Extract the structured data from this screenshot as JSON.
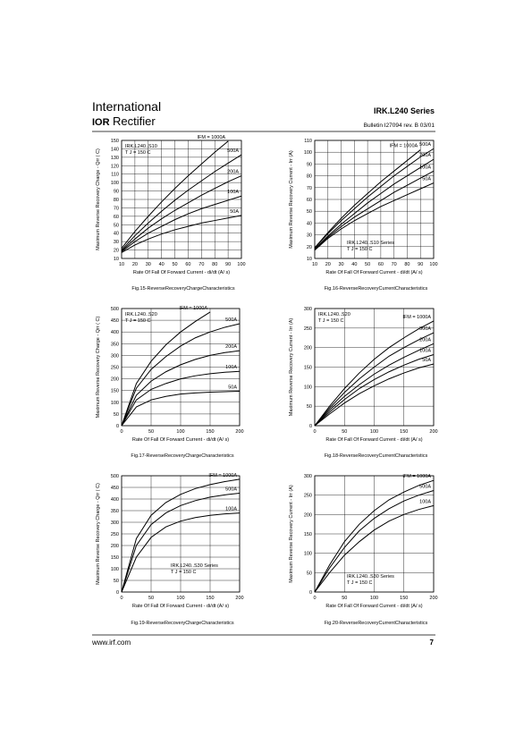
{
  "header": {
    "company_line1": "International",
    "logo": "IOR",
    "company_line2": "Rectifier",
    "series": "IRK.L240  Series",
    "bulletin": "Bulletin  I27094  rev. B  03/01"
  },
  "chart_data": [
    {
      "type": "line",
      "title": "Fig.15-ReverseRecoveryChargeCharacteristics",
      "x_label": "Rate Of Fall Of Forward Current - di/dt (A/  s)",
      "y_label": "Maximum Reverse Recovery Charge - Qrr ( C)",
      "annotations": [
        "IRK.L240..S10",
        "T J = 150  C"
      ],
      "x": [
        10,
        20,
        30,
        40,
        50,
        60,
        70,
        80,
        90,
        100
      ],
      "xlim": [
        10,
        100
      ],
      "xticks": [
        10,
        20,
        30,
        40,
        50,
        60,
        70,
        80,
        90,
        100
      ],
      "ylim": [
        10,
        150
      ],
      "yticks": [
        10,
        20,
        30,
        40,
        50,
        60,
        70,
        80,
        90,
        100,
        110,
        120,
        130,
        140,
        150
      ],
      "grid": true,
      "series": [
        {
          "name": "IFM = 1000A",
          "color": "#000000",
          "values": [
            22,
            42,
            60,
            77,
            93,
            108,
            122,
            136,
            149,
            null
          ]
        },
        {
          "name": "500A",
          "color": "#000000",
          "values": [
            20,
            37,
            52,
            66,
            79,
            91,
            102,
            113,
            123,
            133
          ]
        },
        {
          "name": "200A",
          "color": "#000000",
          "values": [
            19,
            33,
            46,
            57,
            67,
            76,
            85,
            93,
            101,
            108
          ]
        },
        {
          "name": "100A",
          "color": "#000000",
          "values": [
            18,
            30,
            40,
            48,
            56,
            63,
            69,
            74,
            79,
            84
          ]
        },
        {
          "name": "50A",
          "color": "#000000",
          "values": [
            17,
            26,
            33,
            39,
            44,
            48,
            52,
            55,
            58,
            61
          ]
        }
      ]
    },
    {
      "type": "line",
      "title": "Fig.16-ReverseRecoveryCurrentCharacteristics",
      "x_label": "Rate Of Fall Of Forward Current - di/dt (A/  s)",
      "y_label": "Maximum Reverse Recovery Current - Irr (A)",
      "annotations": [
        "IRK.L240..S10 Series",
        "T J = 150  C"
      ],
      "x": [
        10,
        20,
        30,
        40,
        50,
        60,
        70,
        80,
        90,
        100
      ],
      "xlim": [
        10,
        100
      ],
      "xticks": [
        10,
        20,
        30,
        40,
        50,
        60,
        70,
        80,
        90,
        100
      ],
      "ylim": [
        10,
        110
      ],
      "yticks": [
        10,
        20,
        30,
        40,
        50,
        60,
        70,
        80,
        90,
        100,
        110
      ],
      "grid": true,
      "series": [
        {
          "name": "IFM = 1000A",
          "color": "#000000",
          "values": [
            19,
            32,
            44,
            55,
            65,
            75,
            84,
            93,
            102,
            null
          ]
        },
        {
          "name": "500A",
          "color": "#000000",
          "values": [
            19,
            31,
            42,
            52,
            62,
            71,
            80,
            88,
            96,
            103
          ]
        },
        {
          "name": "200A",
          "color": "#000000",
          "values": [
            18,
            29,
            39,
            48,
            57,
            65,
            73,
            80,
            87,
            94
          ]
        },
        {
          "name": "100A",
          "color": "#000000",
          "values": [
            18,
            28,
            37,
            45,
            52,
            59,
            66,
            72,
            78,
            84
          ]
        },
        {
          "name": "50A",
          "color": "#000000",
          "values": [
            17,
            27,
            35,
            42,
            48,
            54,
            59,
            64,
            69,
            74
          ]
        }
      ]
    },
    {
      "type": "line",
      "title": "Fig.17-ReverseRecoveryChargeCharacteristics",
      "x_label": "Rate Of Fall Of Forward Current - di/dt (A/  s)",
      "y_label": "Maximum Reverse Recovery Charge - Qrr ( C)",
      "annotations": [
        "IRK.L240..S20",
        "T J = 150  C"
      ],
      "x": [
        0,
        25,
        50,
        75,
        100,
        125,
        150,
        175,
        200
      ],
      "xlim": [
        0,
        200
      ],
      "xticks": [
        0,
        50,
        100,
        150,
        200
      ],
      "ylim": [
        0,
        500
      ],
      "yticks": [
        0,
        50,
        100,
        150,
        200,
        250,
        300,
        350,
        400,
        450,
        500
      ],
      "grid": true,
      "series": [
        {
          "name": "IFM = 1000A",
          "color": "#000000",
          "values": [
            0,
            180,
            275,
            345,
            400,
            445,
            485,
            null,
            null
          ]
        },
        {
          "name": "500A",
          "color": "#000000",
          "values": [
            0,
            160,
            240,
            295,
            340,
            375,
            400,
            420,
            435
          ]
        },
        {
          "name": "200A",
          "color": "#000000",
          "values": [
            0,
            130,
            190,
            230,
            260,
            283,
            300,
            312,
            320
          ]
        },
        {
          "name": "100A",
          "color": "#000000",
          "values": [
            0,
            110,
            155,
            180,
            200,
            213,
            222,
            228,
            232
          ]
        },
        {
          "name": "50A",
          "color": "#000000",
          "values": [
            0,
            80,
            110,
            125,
            135,
            140,
            143,
            145,
            147
          ]
        }
      ]
    },
    {
      "type": "line",
      "title": "Fig.18-ReverseRecoveryCurrentCharacteristics",
      "x_label": "Rate Of Fall Of Forward Current - di/dt (A/  s)",
      "y_label": "Maximum Reverse Recovery Current - Irr (A)",
      "annotations": [
        "IRK.L240..S20",
        "T J = 150  C"
      ],
      "x": [
        0,
        25,
        50,
        75,
        100,
        125,
        150,
        175,
        200
      ],
      "xlim": [
        0,
        200
      ],
      "xticks": [
        0,
        50,
        100,
        150,
        200
      ],
      "ylim": [
        0,
        300
      ],
      "yticks": [
        0,
        50,
        100,
        150,
        200,
        250,
        300
      ],
      "grid": true,
      "series": [
        {
          "name": "IFM = 1000A",
          "color": "#000000",
          "values": [
            0,
            50,
            95,
            135,
            170,
            200,
            225,
            248,
            268
          ]
        },
        {
          "name": "500A",
          "color": "#000000",
          "values": [
            0,
            45,
            85,
            120,
            150,
            178,
            200,
            220,
            238
          ]
        },
        {
          "name": "200A",
          "color": "#000000",
          "values": [
            0,
            40,
            75,
            105,
            132,
            155,
            175,
            193,
            210
          ]
        },
        {
          "name": "100A",
          "color": "#000000",
          "values": [
            0,
            35,
            67,
            95,
            118,
            138,
            155,
            170,
            182
          ]
        },
        {
          "name": "50A",
          "color": "#000000",
          "values": [
            0,
            30,
            58,
            82,
            102,
            120,
            135,
            148,
            158
          ]
        }
      ]
    },
    {
      "type": "line",
      "title": "Fig.19-ReverseRecoveryChargeCharacteristics",
      "x_label": "Rate Of Fall Of Forward Current - di/dt (A/  s)",
      "y_label": "Maximum Reverse Recovery Charge - Qrr ( C)",
      "annotations": [
        "IRK.L240..S30 Series",
        "T J = 150  C"
      ],
      "x": [
        0,
        25,
        50,
        75,
        100,
        125,
        150,
        175,
        200
      ],
      "xlim": [
        0,
        200
      ],
      "xticks": [
        0,
        50,
        100,
        150,
        200
      ],
      "ylim": [
        0,
        500
      ],
      "yticks": [
        0,
        50,
        100,
        150,
        200,
        250,
        300,
        350,
        400,
        450,
        500
      ],
      "grid": true,
      "series": [
        {
          "name": "IFM = 1000A",
          "color": "#000000",
          "values": [
            0,
            230,
            330,
            385,
            420,
            445,
            462,
            475,
            485
          ]
        },
        {
          "name": "500A",
          "color": "#000000",
          "values": [
            0,
            200,
            290,
            340,
            372,
            393,
            408,
            418,
            425
          ]
        },
        {
          "name": "100A",
          "color": "#000000",
          "values": [
            0,
            150,
            235,
            280,
            305,
            320,
            330,
            336,
            340
          ]
        }
      ]
    },
    {
      "type": "line",
      "title": "Fig.20-ReverseRecoveryCurrentCharacteristics",
      "x_label": "Rate Of Fall Of Forward Current - di/dt (A/  s)",
      "y_label": "Maximum Reverse Recovery Current - Irr (A)",
      "annotations": [
        "IRK.L240..S30 Series",
        "T J = 150  C"
      ],
      "x": [
        0,
        25,
        50,
        75,
        100,
        125,
        150,
        175,
        200
      ],
      "xlim": [
        0,
        200
      ],
      "xticks": [
        0,
        50,
        100,
        150,
        200
      ],
      "ylim": [
        0,
        300
      ],
      "yticks": [
        0,
        50,
        100,
        150,
        200,
        250,
        300
      ],
      "grid": true,
      "series": [
        {
          "name": "IFM = 1000A",
          "color": "#000000",
          "values": [
            0,
            70,
            130,
            175,
            210,
            238,
            258,
            275,
            288
          ]
        },
        {
          "name": "500A",
          "color": "#000000",
          "values": [
            0,
            62,
            115,
            158,
            190,
            215,
            235,
            250,
            262
          ]
        },
        {
          "name": "100A",
          "color": "#000000",
          "values": [
            0,
            50,
            95,
            130,
            160,
            183,
            200,
            213,
            223
          ]
        }
      ]
    }
  ],
  "footer": {
    "url": "www.irf.com",
    "page": "7"
  }
}
